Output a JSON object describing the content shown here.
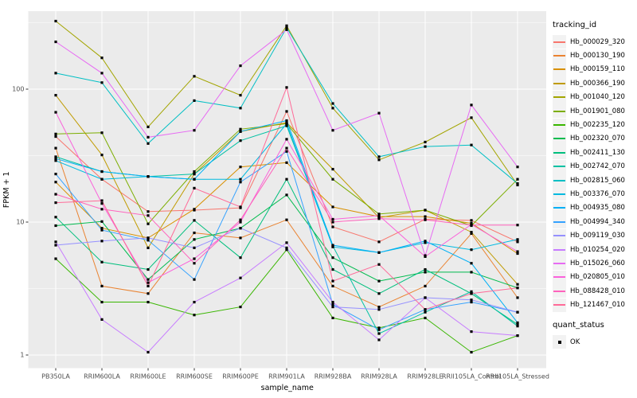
{
  "figure": {
    "panel_bg": "#EBEBEB",
    "grid_color": "#FFFFFF",
    "key_bg": "#F2F2F2",
    "tick_text_color": "#4D4D4D",
    "axis_title_color": "#000000",
    "point_color": "#000000"
  },
  "chart_data": {
    "type": "line",
    "title": "",
    "xlabel": "sample_name",
    "ylabel": "FPKM + 1",
    "y_scale": "log10",
    "y_ticks": [
      1,
      10,
      100
    ],
    "y_tick_labels": [
      "1",
      "10",
      "100"
    ],
    "ylim": [
      0.8,
      386
    ],
    "grid": "on",
    "legend_position": "right",
    "point_marker": "black-square",
    "categories": [
      "PB350LA",
      "RRIM600LA",
      "RRIM600LE",
      "RRIM600SE",
      "RRIM600PE",
      "RRIM901LA",
      "RRIM928BA",
      "RRIM928LA",
      "RRIM928LE",
      "RRII105LA_Control",
      "RRII105LA_Stressed"
    ],
    "legend": {
      "title": "tracking_id"
    },
    "quant_legend": {
      "title": "quant_status",
      "items": [
        {
          "label": "OK",
          "marker": "black-square"
        }
      ]
    },
    "series": [
      {
        "name": "Hb_000029_320",
        "color": "#F8766D",
        "values": [
          44,
          21,
          12,
          12.3,
          12.8,
          68,
          9.2,
          7.1,
          10.5,
          10.3,
          7.1
        ]
      },
      {
        "name": "Hb_000130_190",
        "color": "#EA8331",
        "values": [
          36,
          3.3,
          2.9,
          8.3,
          7.6,
          10.4,
          3.3,
          2.3,
          3.3,
          8.2,
          2.7
        ]
      },
      {
        "name": "Hb_000159_110",
        "color": "#D89000",
        "values": [
          20,
          9.0,
          7.6,
          12.5,
          26,
          28,
          13,
          11,
          11,
          9.8,
          5.8
        ]
      },
      {
        "name": "Hb_000366_190",
        "color": "#C09B00",
        "values": [
          90,
          32,
          6.4,
          23,
          48,
          56,
          25,
          10.8,
          12.3,
          8.4,
          3.4
        ]
      },
      {
        "name": "Hb_001040_120",
        "color": "#A3A500",
        "values": [
          325,
          172,
          52,
          125,
          90,
          300,
          72,
          29.4,
          40,
          61,
          19
        ]
      },
      {
        "name": "Hb_001901_080",
        "color": "#7CAE00",
        "values": [
          46,
          47,
          9.7,
          24,
          50,
          55,
          21,
          11.5,
          12.3,
          9.4,
          21
        ]
      },
      {
        "name": "Hb_002235_120",
        "color": "#39B600",
        "values": [
          5.3,
          2.5,
          2.5,
          2.0,
          2.3,
          6.2,
          1.9,
          1.6,
          1.9,
          1.05,
          1.4
        ]
      },
      {
        "name": "Hb_002320_070",
        "color": "#00BB4E",
        "values": [
          9.4,
          10.1,
          3.7,
          7.4,
          9.0,
          16,
          5.4,
          3.6,
          4.2,
          4.2,
          3.2
        ]
      },
      {
        "name": "Hb_002411_130",
        "color": "#00BF7D",
        "values": [
          10.9,
          5.0,
          4.4,
          10.3,
          5.4,
          21,
          4.4,
          2.9,
          4.4,
          2.9,
          1.7
        ]
      },
      {
        "name": "Hb_002742_070",
        "color": "#00C1A3",
        "values": [
          31,
          24,
          22,
          23,
          41,
          53,
          6.6,
          1.45,
          2.1,
          3.0,
          1.65
        ]
      },
      {
        "name": "Hb_002815_060",
        "color": "#00BFC4",
        "values": [
          132,
          112,
          39,
          82,
          72,
          290,
          78,
          31,
          37,
          38,
          19.5
        ]
      },
      {
        "name": "Hb_003376_070",
        "color": "#00BAE0",
        "values": [
          29,
          21,
          22,
          21,
          21,
          55,
          6.5,
          5.9,
          7.0,
          6.2,
          7.4
        ]
      },
      {
        "name": "Hb_004935_080",
        "color": "#00B0F6",
        "values": [
          30,
          24,
          22,
          21,
          48,
          58,
          6.7,
          5.9,
          7.2,
          4.9,
          1.75
        ]
      },
      {
        "name": "Hb_004994_340",
        "color": "#35A2FF",
        "values": [
          23,
          8.7,
          7.3,
          3.7,
          20,
          34,
          2.4,
          1.55,
          2.2,
          2.5,
          2.1
        ]
      },
      {
        "name": "Hb_009119_030",
        "color": "#9590FF",
        "values": [
          6.7,
          7.2,
          7.6,
          6.4,
          9.0,
          6.4,
          2.3,
          2.2,
          2.7,
          2.6,
          2.1
        ]
      },
      {
        "name": "Hb_010254_020",
        "color": "#C77CFF",
        "values": [
          7.1,
          1.85,
          1.05,
          2.5,
          3.8,
          7.0,
          2.5,
          1.3,
          2.7,
          1.5,
          1.4
        ]
      },
      {
        "name": "Hb_015026_060",
        "color": "#E76BF3",
        "values": [
          227,
          132,
          43.5,
          49,
          150,
          280,
          49,
          66,
          5.6,
          76,
          26
        ]
      },
      {
        "name": "Hb_020805_010",
        "color": "#FA62DB",
        "values": [
          67,
          13.8,
          3.5,
          5.3,
          10.0,
          42,
          10.5,
          11.2,
          5.5,
          9.6,
          6.0
        ]
      },
      {
        "name": "Hb_088428_010",
        "color": "#FF62BC",
        "values": [
          16.2,
          12.5,
          11.2,
          4.9,
          10.4,
          36,
          10,
          10.6,
          10.4,
          9.5,
          9.5
        ]
      },
      {
        "name": "Hb_121467_010",
        "color": "#FF6A98",
        "values": [
          14.0,
          14.5,
          3.3,
          18,
          13,
          103,
          3.6,
          4.8,
          2.2,
          2.9,
          3.2
        ]
      }
    ]
  }
}
